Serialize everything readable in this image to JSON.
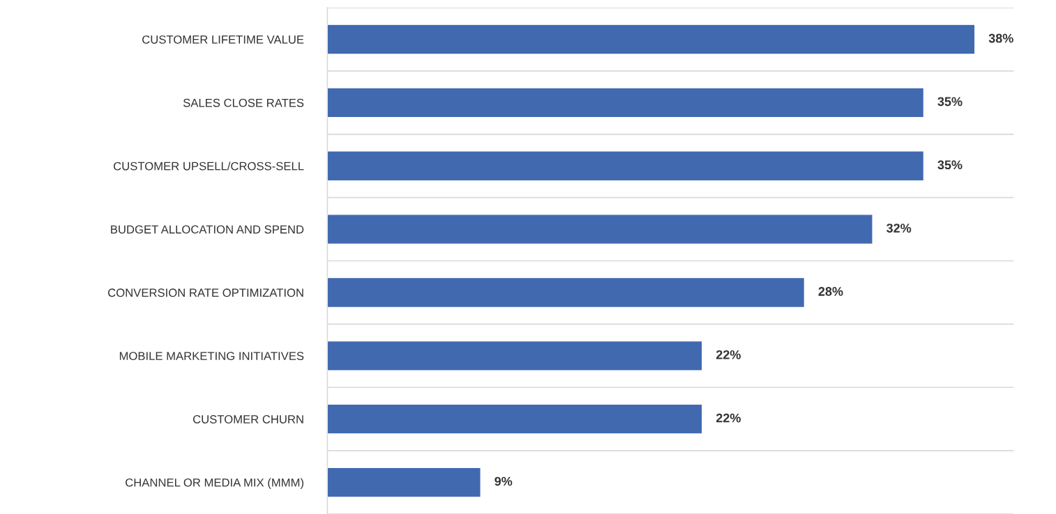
{
  "chart_data": {
    "type": "bar",
    "orientation": "horizontal",
    "categories": [
      "CUSTOMER LIFETIME VALUE",
      "SALES CLOSE RATES",
      "CUSTOMER UPSELL/CROSS-SELL",
      "BUDGET ALLOCATION AND SPEND",
      "CONVERSION RATE OPTIMIZATION",
      "MOBILE MARKETING INITIATIVES",
      "CUSTOMER CHURN",
      "CHANNEL OR MEDIA MIX (MMM)"
    ],
    "values": [
      38,
      35,
      35,
      32,
      28,
      22,
      22,
      9
    ],
    "value_labels": [
      "38%",
      "35%",
      "35%",
      "32%",
      "28%",
      "22%",
      "22%",
      "9%"
    ],
    "color": "#4169b0",
    "grid": "y"
  }
}
